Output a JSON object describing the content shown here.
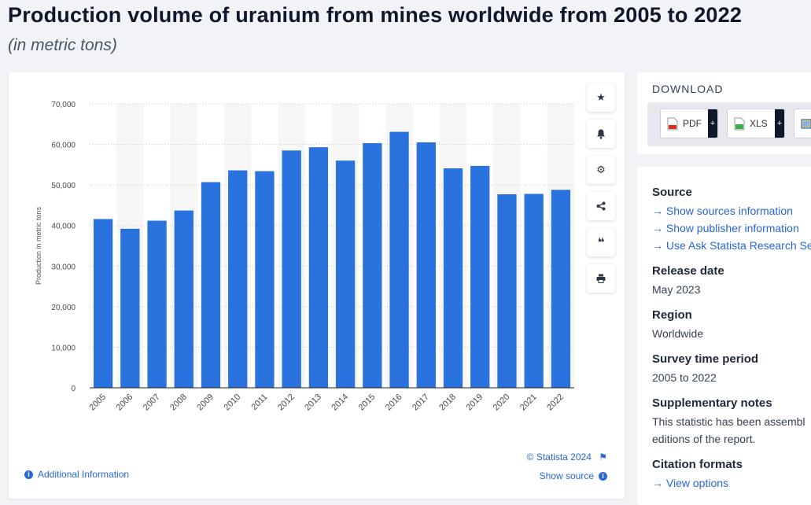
{
  "title": "Production volume of uranium from mines worldwide from 2005 to 2022",
  "subtitle": "(in metric tons)",
  "chart_data": {
    "type": "bar",
    "categories": [
      "2005",
      "2006",
      "2007",
      "2008",
      "2009",
      "2010",
      "2011",
      "2012",
      "2013",
      "2014",
      "2015",
      "2016",
      "2017",
      "2018",
      "2019",
      "2020",
      "2021",
      "2022"
    ],
    "values": [
      41600,
      39200,
      41200,
      43700,
      50700,
      53600,
      53400,
      58500,
      59300,
      56000,
      60300,
      63100,
      60500,
      54100,
      54700,
      47700,
      47800,
      48800
    ],
    "ylabel": "Production in metric tons",
    "ylim": [
      0,
      70000
    ],
    "yticks": [
      0,
      10000,
      20000,
      30000,
      40000,
      50000,
      60000,
      70000
    ],
    "ytick_labels": [
      "0",
      "10,000",
      "20,000",
      "30,000",
      "40,000",
      "50,000",
      "60,000",
      "70,000"
    ],
    "bar_color": "#2a73de",
    "stripe_color": "#f6f6f6",
    "grid": true
  },
  "toolbar": {
    "icons": [
      "star-icon",
      "bell-icon",
      "gear-icon",
      "share-icon",
      "quote-icon",
      "print-icon"
    ]
  },
  "credit": "© Statista 2024",
  "show_source": "Show source",
  "additional_info": "Additional Information",
  "download": {
    "title": "DOWNLOAD",
    "pdf": "PDF",
    "xls": "XLS"
  },
  "info": {
    "source_heading": "Source",
    "source_links": [
      "Show sources information",
      "Show publisher information",
      "Use Ask Statista Research Se"
    ],
    "release_heading": "Release date",
    "release_value": "May 2023",
    "region_heading": "Region",
    "region_value": "Worldwide",
    "period_heading": "Survey time period",
    "period_value": "2005 to 2022",
    "notes_heading": "Supplementary notes",
    "notes_lines": [
      "This statistic has been assembl",
      "editions of the report."
    ],
    "citation_heading": "Citation formats",
    "citation_link": "View options"
  },
  "colors": {
    "accent": "#2767d8",
    "bar": "#2a73de"
  }
}
